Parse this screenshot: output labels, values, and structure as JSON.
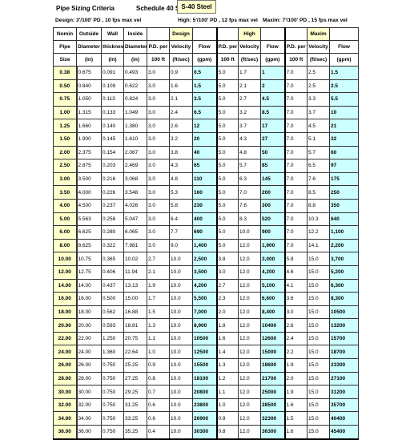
{
  "header": {
    "title": "Pipe Sizing Criteria",
    "schedule": "Schedule 40 Steel",
    "schedule_badge": "S-40 Steel",
    "design_criteria": "Design:  3'/100' PD , 10 fps max vel",
    "high_criteria": "High: 5'/100' PD , 12 fps max vel",
    "maxim_criteria": "Maxim: 7'/100' PD , 15 fps max vel"
  },
  "table": {
    "group_row": [
      "Nomin",
      "Outside",
      "Wall",
      "Inside",
      "",
      "Design",
      "",
      "",
      "High",
      "",
      "",
      "Maxim",
      ""
    ],
    "label_row": [
      "Pipe",
      "Diameter",
      "thickness",
      "Diameter",
      "P.D. per",
      "Velocity",
      "Flow",
      "P.D. per",
      "Velocity",
      "Flow",
      "P.D. per",
      "Velocity",
      "Flow"
    ],
    "unit_row": [
      "Size",
      "(in)",
      "(in)",
      "(in)",
      "100 ft",
      "(ft/sec)",
      "(gpm)",
      "100 ft",
      "(ft/sec)",
      "(gpm)",
      "100 ft",
      "(ft/sec)",
      "(gpm)"
    ],
    "rows": [
      [
        "0.38",
        "0.675",
        "0.091",
        "0.493",
        "3.0",
        "0.9",
        "0.5",
        "5.0",
        "1.7",
        "1",
        "7.0",
        "2.5",
        "1.5"
      ],
      [
        "0.50",
        "0.840",
        "0.109",
        "0.622",
        "3.0",
        "1.6",
        "1.5",
        "5.0",
        "2.1",
        "2",
        "7.0",
        "2.5",
        "2.5"
      ],
      [
        "0.75",
        "1.050",
        "0.113",
        "0.824",
        "3.0",
        "2.1",
        "3.5",
        "5.0",
        "2.7",
        "4.5",
        "7.0",
        "3.3",
        "5.5"
      ],
      [
        "1.00",
        "1.315",
        "0.133",
        "1.049",
        "3.0",
        "2.4",
        "6.5",
        "5.0",
        "3.2",
        "8.5",
        "7.0",
        "3.7",
        "10"
      ],
      [
        "1.25",
        "1.660",
        "0.140",
        "1.380",
        "3.0",
        "2.6",
        "12",
        "5.0",
        "3.7",
        "17",
        "7.0",
        "4.5",
        "21"
      ],
      [
        "1.50",
        "1.900",
        "0.145",
        "1.610",
        "3.0",
        "3.2",
        "20",
        "5.0",
        "4.3",
        "27",
        "7.0",
        "5.1",
        "32"
      ],
      [
        "2.00",
        "2.375",
        "0.154",
        "2.067",
        "3.0",
        "3.8",
        "40",
        "5.0",
        "4.8",
        "50",
        "7.0",
        "5.7",
        "60"
      ],
      [
        "2.50",
        "2.875",
        "0.203",
        "2.469",
        "3.0",
        "4.3",
        "65",
        "5.0",
        "5.7",
        "85",
        "7.0",
        "6.5",
        "97"
      ],
      [
        "3.00",
        "3.500",
        "0.216",
        "3.068",
        "3.0",
        "4.8",
        "110",
        "5.0",
        "6.3",
        "145",
        "7.0",
        "7.6",
        "175"
      ],
      [
        "3.50",
        "4.000",
        "0.226",
        "3.548",
        "3.0",
        "5.3",
        "160",
        "5.0",
        "7.0",
        "200",
        "7.0",
        "8.5",
        "250"
      ],
      [
        "4.00",
        "4.500",
        "0.237",
        "4.026",
        "3.0",
        "5.8",
        "230",
        "5.0",
        "7.6",
        "300",
        "7.0",
        "8.8",
        "350"
      ],
      [
        "5.00",
        "5.563",
        "0.258",
        "5.047",
        "3.0",
        "6.4",
        "400",
        "5.0",
        "8.3",
        "520",
        "7.0",
        "10.3",
        "640"
      ],
      [
        "6.00",
        "6.625",
        "0.280",
        "6.065",
        "3.0",
        "7.7",
        "690",
        "5.0",
        "10.0",
        "900",
        "7.0",
        "12.2",
        "1,100"
      ],
      [
        "8.00",
        "8.625",
        "0.322",
        "7.981",
        "3.0",
        "9.0",
        "1,400",
        "5.0",
        "12.0",
        "1,900",
        "7.0",
        "14.1",
        "2,200"
      ],
      [
        "10.00",
        "10.75",
        "0.365",
        "10.02",
        "2.7",
        "10.0",
        "2,500",
        "3.8",
        "12.0",
        "3,000",
        "5.8",
        "15.0",
        "3,700"
      ],
      [
        "12.00",
        "12.75",
        "0.406",
        "11.94",
        "2.1",
        "10.0",
        "3,500",
        "3.0",
        "12.0",
        "4,200",
        "4.6",
        "15.0",
        "5,200"
      ],
      [
        "14.00",
        "14.00",
        "0.437",
        "13.13",
        "1.9",
        "10.0",
        "4,200",
        "2.7",
        "12.0",
        "5,100",
        "4.1",
        "15.0",
        "6,300"
      ],
      [
        "16.00",
        "16.00",
        "0.500",
        "15.00",
        "1.7",
        "10.0",
        "5,500",
        "2.3",
        "12.0",
        "6,600",
        "3.6",
        "15.0",
        "8,300"
      ],
      [
        "18.00",
        "18.00",
        "0.562",
        "16.88",
        "1.5",
        "10.0",
        "7,000",
        "2.0",
        "12.0",
        "8,400",
        "3.0",
        "15.0",
        "10500"
      ],
      [
        "20.00",
        "20.00",
        "0.593",
        "18.81",
        "1.3",
        "10.0",
        "8,900",
        "1.8",
        "12.0",
        "10400",
        "2.6",
        "15.0",
        "13200"
      ],
      [
        "22.00",
        "22.00",
        "1.250",
        "20.75",
        "1.1",
        "10.0",
        "10500",
        "1.6",
        "12.0",
        "12600",
        "2.4",
        "15.0",
        "15700"
      ],
      [
        "24.00",
        "24.00",
        "1.360",
        "22.64",
        "1.0",
        "10.0",
        "12500",
        "1.4",
        "12.0",
        "15000",
        "2.2",
        "15.0",
        "18700"
      ],
      [
        "26.00",
        "26.00",
        "0.750",
        "25.25",
        "0.9",
        "10.0",
        "15500",
        "1.3",
        "12.0",
        "18600",
        "1.9",
        "15.0",
        "23300"
      ],
      [
        "28.00",
        "28.00",
        "0.750",
        "27.25",
        "0.8",
        "10.0",
        "18100",
        "1.2",
        "12.0",
        "21700",
        "2.0",
        "15.0",
        "27100"
      ],
      [
        "30.00",
        "30.00",
        "0.750",
        "29.25",
        "0.7",
        "10.0",
        "20800",
        "1.1",
        "12.0",
        "25000",
        "1.9",
        "15.0",
        "31200"
      ],
      [
        "32.00",
        "32.00",
        "0.750",
        "31.25",
        "0.6",
        "10.0",
        "23800",
        "1.0",
        "12.0",
        "28500",
        "1.6",
        "15.0",
        "35700"
      ],
      [
        "34.00",
        "34.00",
        "0.750",
        "33.25",
        "0.6",
        "10.0",
        "26900",
        "0.9",
        "12.0",
        "32300",
        "1.5",
        "15.0",
        "40400"
      ],
      [
        "36.00",
        "36.00",
        "0.750",
        "35.25",
        "0.4",
        "10.0",
        "30300",
        "0.8",
        "12.0",
        "36300",
        "1.6",
        "15.0",
        "45400"
      ]
    ]
  },
  "colors": {
    "size_highlight": "#ffffcc",
    "flow_highlight": "#ccffff",
    "border": "#333333"
  }
}
